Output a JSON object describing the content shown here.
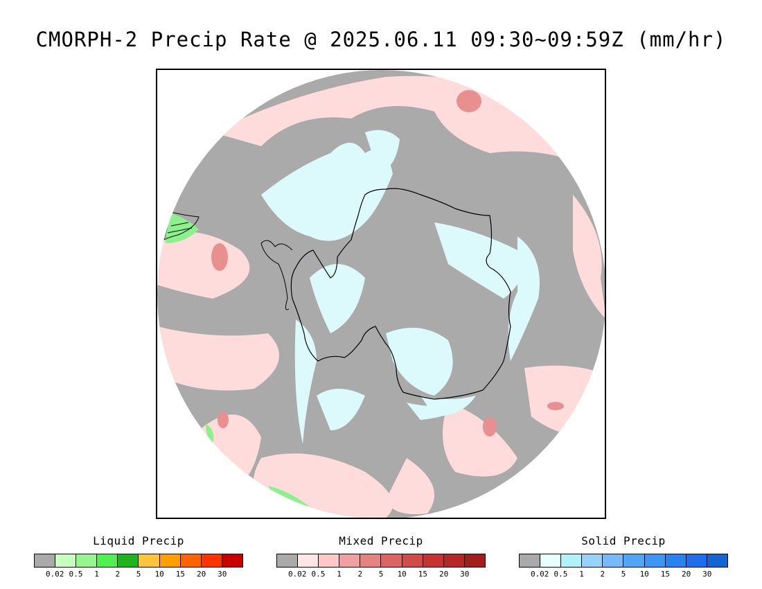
{
  "title": "CMORPH-2 Precip Rate @ 2025.06.11 09:30~09:59Z (mm/hr)",
  "map": {
    "projection": "south polar stereographic",
    "background_color": "#aaaaaa",
    "coastline_color": "#000000"
  },
  "legends": [
    {
      "title": "Liquid Precip",
      "colors": [
        "#aaaaaa",
        "#c8ffbe",
        "#96f58c",
        "#50f050",
        "#1eb41e",
        "#ffc43c",
        "#ffa000",
        "#ff6400",
        "#ff3200",
        "#c80000"
      ],
      "ticks": [
        "0.02",
        "0.5",
        "1",
        "2",
        "5",
        "10",
        "15",
        "20",
        "30"
      ]
    },
    {
      "title": "Mixed Precip",
      "colors": [
        "#aaaaaa",
        "#ffe6e6",
        "#ffc8c8",
        "#f0a0a0",
        "#e68282",
        "#dc6464",
        "#d24b4b",
        "#c83232",
        "#b42828",
        "#a01e1e"
      ],
      "ticks": [
        "0.02",
        "0.5",
        "1",
        "2",
        "5",
        "10",
        "15",
        "20",
        "30"
      ]
    },
    {
      "title": "Solid Precip",
      "colors": [
        "#aaaaaa",
        "#e6ffff",
        "#b4f0fa",
        "#96d2fa",
        "#78b9fa",
        "#50a5f5",
        "#3c96f5",
        "#2882f0",
        "#1e6eeb",
        "#1464d2"
      ],
      "ticks": [
        "0.02",
        "0.5",
        "1",
        "2",
        "5",
        "10",
        "15",
        "20",
        "30"
      ]
    }
  ]
}
